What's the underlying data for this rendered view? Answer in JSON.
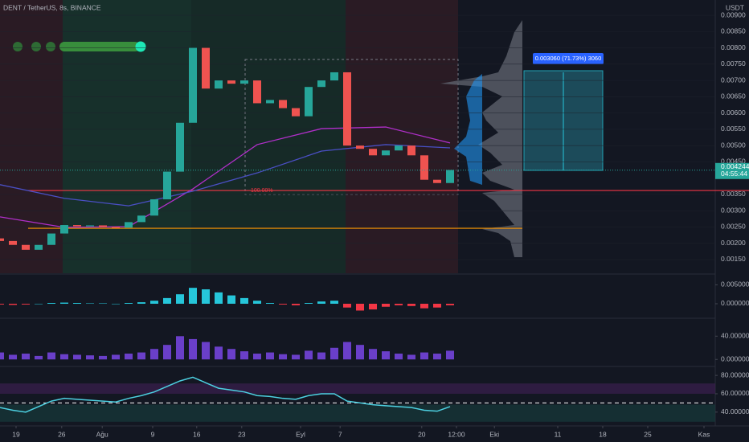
{
  "title": "DENT / TetherUS, 8s, BINANCE",
  "currency": "USDT",
  "chart_data": {
    "type": "candlestick",
    "x": [
      0,
      2,
      4,
      6,
      8,
      10,
      12,
      14,
      16,
      18,
      20,
      22,
      24,
      26,
      28,
      30,
      32,
      34,
      36,
      38,
      40,
      42,
      44,
      46,
      48,
      50,
      52,
      54,
      56,
      58,
      60,
      62,
      64,
      66,
      68,
      70
    ],
    "open": [
      0.00215,
      0.00207,
      0.00195,
      0.0018,
      0.00195,
      0.0023,
      0.00256,
      0.00252,
      0.00255,
      0.0025,
      0.00248,
      0.00265,
      0.00285,
      0.00335,
      0.0042,
      0.0057,
      0.008,
      0.00675,
      0.007,
      0.0069,
      0.007,
      0.0063,
      0.0064,
      0.00615,
      0.0059,
      0.0068,
      0.007,
      0.00725,
      0.005,
      0.0049,
      0.0047,
      0.00485,
      0.005,
      0.0047,
      0.00395,
      0.00385
    ],
    "close": [
      0.00207,
      0.00195,
      0.0018,
      0.00195,
      0.0023,
      0.00256,
      0.00252,
      0.00255,
      0.0025,
      0.00248,
      0.00265,
      0.00285,
      0.00335,
      0.0042,
      0.0057,
      0.008,
      0.00675,
      0.007,
      0.0069,
      0.007,
      0.0063,
      0.0064,
      0.00615,
      0.0059,
      0.0068,
      0.007,
      0.00725,
      0.005,
      0.0049,
      0.0047,
      0.00485,
      0.005,
      0.0047,
      0.00395,
      0.00385,
      0.00425
    ],
    "up_color": "#26a69a",
    "down_color": "#ef5350",
    "xlim": [
      0,
      111.25
    ],
    "ylim": [
      0.00108,
      0.00947
    ],
    "xticks": [
      {
        "value": 2.5,
        "label": "19"
      },
      {
        "value": 9.6,
        "label": "26"
      },
      {
        "value": 15.9,
        "label": "Ağu"
      },
      {
        "value": 23.75,
        "label": "9"
      },
      {
        "value": 30.6,
        "label": "16"
      },
      {
        "value": 37.6,
        "label": "23"
      },
      {
        "value": 46.75,
        "label": "Eyl"
      },
      {
        "value": 52.9,
        "label": "7"
      },
      {
        "value": 65.6,
        "label": "20"
      },
      {
        "value": 71,
        "label": "12:00"
      },
      {
        "value": 76.9,
        "label": "Eki"
      },
      {
        "value": 86.75,
        "label": "11"
      },
      {
        "value": 93.75,
        "label": "18"
      },
      {
        "value": 100.75,
        "label": "25"
      },
      {
        "value": 109.5,
        "label": "Kas"
      }
    ],
    "yticks": [
      {
        "value": 0.009,
        "label": "0.00900"
      },
      {
        "value": 0.0085,
        "label": "0.00850"
      },
      {
        "value": 0.008,
        "label": "0.00800"
      },
      {
        "value": 0.0075,
        "label": "0.00750"
      },
      {
        "value": 0.007,
        "label": "0.00700"
      },
      {
        "value": 0.0065,
        "label": "0.00650"
      },
      {
        "value": 0.006,
        "label": "0.00600"
      },
      {
        "value": 0.0055,
        "label": "0.00550"
      },
      {
        "value": 0.005,
        "label": "0.00500"
      },
      {
        "value": 0.0045,
        "label": "0.00450"
      },
      {
        "value": 0.0035,
        "label": "0.00350"
      },
      {
        "value": 0.003,
        "label": "0.00300"
      },
      {
        "value": 0.0025,
        "label": "0.00250"
      },
      {
        "value": 0.002,
        "label": "0.00200"
      },
      {
        "value": 0.0015,
        "label": "0.00150"
      }
    ],
    "lines": [
      {
        "color": "#b02fc9",
        "x": [
          0,
          10,
          20,
          30,
          40,
          50,
          60,
          70
        ],
        "values": [
          0.00281,
          0.00249,
          0.00251,
          0.00367,
          0.00503,
          0.00552,
          0.00557,
          0.00508
        ]
      },
      {
        "color": "#4a4fc4",
        "x": [
          0,
          10,
          20,
          30,
          40,
          50,
          60,
          70
        ],
        "values": [
          0.0038,
          0.00338,
          0.00315,
          0.0036,
          0.00416,
          0.00483,
          0.00503,
          0.00493
        ]
      }
    ],
    "levels": [
      {
        "value": 0.00362,
        "color": "#f23645"
      },
      {
        "value": 0.00246,
        "color": "#ff9800"
      }
    ],
    "last_price": 0.004244,
    "countdown": "04:55:44",
    "measure_label": "0.003060 (71.73%) 3060",
    "fib_label": "100.00%",
    "indicators": [
      {
        "type": "histogram",
        "color": "#26c6da",
        "neg_color": "#f23645",
        "ylim": [
          -0.0034,
          0.0072
        ],
        "yticks": [
          {
            "value": 0.005,
            "label": "0.005000"
          },
          {
            "value": 0,
            "label": "0.000000"
          }
        ],
        "values": [
          -0.0002,
          -0.0003,
          -0.0002,
          0,
          0.0002,
          0.0003,
          0.0002,
          0.0001,
          0.0001,
          0,
          0.0002,
          0.0004,
          0.0008,
          0.0015,
          0.0025,
          0.0042,
          0.0038,
          0.003,
          0.0022,
          0.0015,
          0.0008,
          0.0002,
          -0.0002,
          -0.0004,
          0.0002,
          0.0006,
          0.0008,
          -0.001,
          -0.0018,
          -0.0015,
          -0.0008,
          -0.0004,
          -0.0006,
          -0.0012,
          -0.001,
          -0.0004
        ]
      },
      {
        "type": "histogram",
        "color": "#6a3fc9",
        "neg_color": "#6a3fc9",
        "ylim": [
          -9.33,
          66.67
        ],
        "yticks": [
          {
            "value": 40,
            "label": "40.000000"
          },
          {
            "value": 0,
            "label": "0.000000"
          }
        ],
        "values": [
          12,
          8,
          10,
          6,
          12,
          9,
          8,
          7,
          6,
          8,
          10,
          12,
          18,
          25,
          40,
          35,
          30,
          22,
          18,
          14,
          10,
          12,
          9,
          8,
          15,
          12,
          20,
          30,
          25,
          18,
          14,
          10,
          8,
          12,
          10,
          15
        ]
      },
      {
        "type": "line",
        "color": "#4dd0e1",
        "midline": 50,
        "ylim": [
          26.7,
          88
        ],
        "yticks": [
          {
            "value": 80,
            "label": "80.000000"
          },
          {
            "value": 60,
            "label": "60.000000"
          },
          {
            "value": 40,
            "label": "40.000000"
          }
        ],
        "values": [
          45,
          42,
          40,
          46,
          52,
          55,
          54,
          53,
          52,
          51,
          55,
          58,
          62,
          68,
          74,
          78,
          72,
          66,
          64,
          62,
          58,
          57,
          55,
          54,
          58,
          60,
          60,
          52,
          50,
          48,
          47,
          46,
          45,
          42,
          41,
          46
        ]
      }
    ]
  }
}
